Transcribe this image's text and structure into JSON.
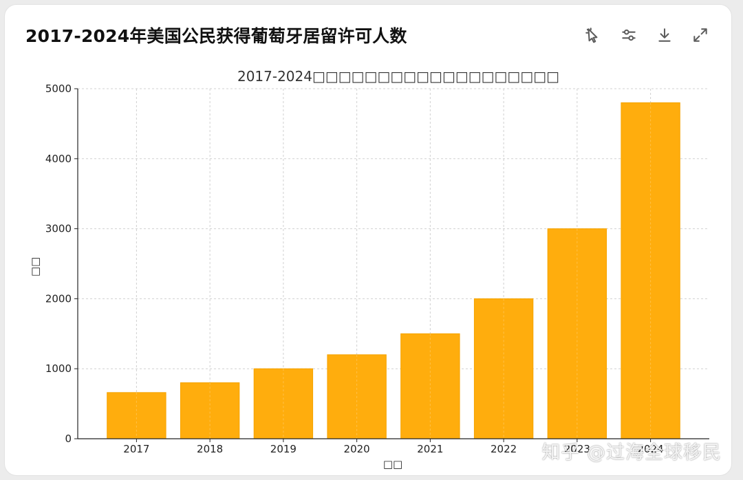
{
  "card": {
    "title": "2017-2024年美国公民获得葡萄牙居留许可人数"
  },
  "toolbar": {
    "buttons": [
      {
        "name": "interactive-icon",
        "label": ""
      },
      {
        "name": "settings-sliders-icon",
        "label": ""
      },
      {
        "name": "download-icon",
        "label": ""
      },
      {
        "name": "expand-icon",
        "label": ""
      }
    ]
  },
  "watermark": {
    "text": "知乎 @过海全球移民"
  },
  "colors": {
    "bar": "#ffad0d",
    "bar_edge": "#f5a300",
    "grid": "#d0d0d0",
    "axis": "#222222",
    "text": "#222222"
  },
  "chart_data": {
    "type": "bar",
    "title": "2017-2024□□□□□□□□□□□□□□□□□□□",
    "xlabel": "□□",
    "ylabel": "□□",
    "categories": [
      "2017",
      "2018",
      "2019",
      "2020",
      "2021",
      "2022",
      "2023",
      "2024"
    ],
    "values": [
      660,
      800,
      1000,
      1200,
      1500,
      2000,
      3000,
      4800
    ],
    "ylim": [
      0,
      5000
    ],
    "yticks": [
      0,
      1000,
      2000,
      3000,
      4000,
      5000
    ],
    "grid": true,
    "grid_style": "dashed"
  }
}
